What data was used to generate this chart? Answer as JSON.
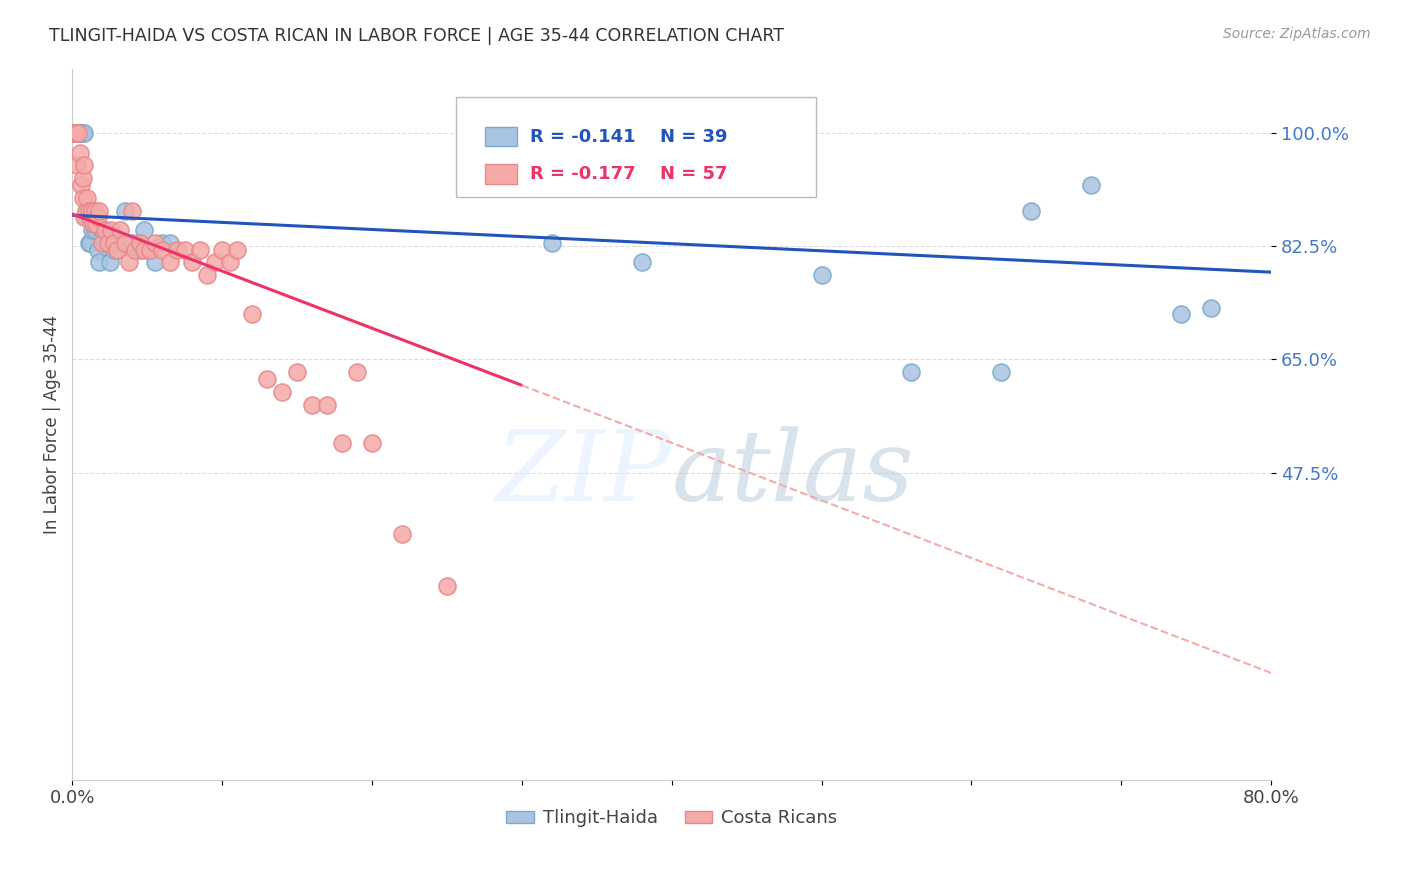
{
  "title": "TLINGIT-HAIDA VS COSTA RICAN IN LABOR FORCE | AGE 35-44 CORRELATION CHART",
  "source": "Source: ZipAtlas.com",
  "ylabel": "In Labor Force | Age 35-44",
  "xlim": [
    0.0,
    0.8
  ],
  "ylim": [
    0.0,
    1.1
  ],
  "yticks": [
    0.475,
    0.65,
    0.825,
    1.0
  ],
  "ytick_labels": [
    "47.5%",
    "65.0%",
    "82.5%",
    "100.0%"
  ],
  "xticks": [
    0.0,
    0.1,
    0.2,
    0.3,
    0.4,
    0.5,
    0.6,
    0.7,
    0.8
  ],
  "xtick_labels": [
    "0.0%",
    "",
    "",
    "",
    "",
    "",
    "",
    "",
    "80.0%"
  ],
  "blue_color": "#A8C4E0",
  "blue_edge_color": "#7AAACF",
  "pink_color": "#F5AAAA",
  "pink_edge_color": "#E88888",
  "trend_blue": "#2255BB",
  "trend_pink": "#EE3366",
  "trend_pink_dashed": "#F5AAAA",
  "legend_R_blue": "R = -0.141",
  "legend_N_blue": "N = 39",
  "legend_R_pink": "R = -0.177",
  "legend_N_pink": "N = 57",
  "blue_scatter_x": [
    0.001,
    0.002,
    0.003,
    0.004,
    0.005,
    0.005,
    0.006,
    0.006,
    0.007,
    0.008,
    0.009,
    0.01,
    0.011,
    0.012,
    0.013,
    0.015,
    0.017,
    0.018,
    0.02,
    0.022,
    0.025,
    0.028,
    0.03,
    0.035,
    0.04,
    0.045,
    0.048,
    0.055,
    0.06,
    0.065,
    0.32,
    0.38,
    0.5,
    0.56,
    0.62,
    0.64,
    0.68,
    0.74,
    0.76
  ],
  "blue_scatter_y": [
    1.0,
    1.0,
    1.0,
    1.0,
    1.0,
    1.0,
    1.0,
    1.0,
    1.0,
    1.0,
    0.87,
    0.88,
    0.83,
    0.83,
    0.85,
    0.85,
    0.82,
    0.8,
    0.85,
    0.83,
    0.8,
    0.82,
    0.82,
    0.88,
    0.83,
    0.82,
    0.85,
    0.8,
    0.83,
    0.83,
    0.83,
    0.8,
    0.78,
    0.63,
    0.63,
    0.88,
    0.92,
    0.72,
    0.73
  ],
  "pink_scatter_x": [
    0.001,
    0.002,
    0.003,
    0.004,
    0.005,
    0.006,
    0.007,
    0.007,
    0.008,
    0.008,
    0.009,
    0.01,
    0.011,
    0.012,
    0.013,
    0.014,
    0.015,
    0.016,
    0.017,
    0.018,
    0.02,
    0.022,
    0.024,
    0.026,
    0.028,
    0.03,
    0.032,
    0.035,
    0.038,
    0.04,
    0.042,
    0.045,
    0.048,
    0.052,
    0.055,
    0.06,
    0.065,
    0.07,
    0.075,
    0.08,
    0.085,
    0.09,
    0.095,
    0.1,
    0.105,
    0.11,
    0.12,
    0.13,
    0.14,
    0.15,
    0.16,
    0.17,
    0.18,
    0.19,
    0.2,
    0.22,
    0.25
  ],
  "pink_scatter_y": [
    1.0,
    1.0,
    0.95,
    1.0,
    0.97,
    0.92,
    0.93,
    0.9,
    0.95,
    0.87,
    0.88,
    0.9,
    0.88,
    0.87,
    0.88,
    0.86,
    0.88,
    0.86,
    0.87,
    0.88,
    0.83,
    0.85,
    0.83,
    0.85,
    0.83,
    0.82,
    0.85,
    0.83,
    0.8,
    0.88,
    0.82,
    0.83,
    0.82,
    0.82,
    0.83,
    0.82,
    0.8,
    0.82,
    0.82,
    0.8,
    0.82,
    0.78,
    0.8,
    0.82,
    0.8,
    0.82,
    0.72,
    0.62,
    0.6,
    0.63,
    0.58,
    0.58,
    0.52,
    0.63,
    0.52,
    0.38,
    0.3
  ],
  "trend_blue_x0": 0.0,
  "trend_blue_x1": 0.8,
  "trend_blue_y0": 0.873,
  "trend_blue_y1": 0.785,
  "trend_pink_solid_x0": 0.0,
  "trend_pink_solid_x1": 0.3,
  "trend_pink_solid_y0": 0.875,
  "trend_pink_solid_y1": 0.61,
  "trend_pink_dash_x0": 0.3,
  "trend_pink_dash_x1": 0.8,
  "trend_pink_dash_y0": 0.61,
  "trend_pink_dash_y1": 0.165,
  "watermark_top": "ZIP",
  "watermark_bottom": "atlas",
  "background_color": "#FFFFFF",
  "grid_color": "#DDDDDD",
  "title_color": "#333333",
  "source_color": "#999999",
  "ylabel_color": "#444444",
  "ytick_color": "#4477CC",
  "xtick_color": "#444444"
}
